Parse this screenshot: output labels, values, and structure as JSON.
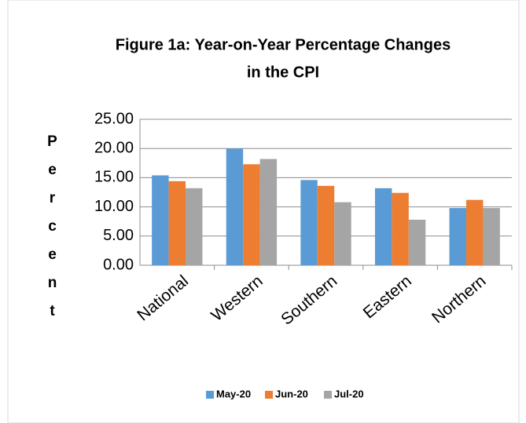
{
  "chart_data": {
    "type": "bar",
    "title": [
      "Figure 1a: Year-on-Year Percentage Changes",
      "in the CPI"
    ],
    "ylabel": "Percent",
    "categories": [
      "National",
      "Western",
      "Southern",
      "Eastern",
      "Northern"
    ],
    "series": [
      {
        "name": "May-20",
        "color": "#5b9bd5",
        "values": [
          15.4,
          20.0,
          14.6,
          13.2,
          9.8
        ]
      },
      {
        "name": "Jun-20",
        "color": "#ed7d31",
        "values": [
          14.4,
          17.3,
          13.6,
          12.4,
          11.2
        ]
      },
      {
        "name": "Jul-20",
        "color": "#a5a5a5",
        "values": [
          13.2,
          18.2,
          10.8,
          7.8,
          9.8
        ]
      }
    ],
    "ylim": [
      0,
      25
    ],
    "yticks": [
      {
        "value": 0,
        "label": "0.00"
      },
      {
        "value": 5,
        "label": "5.00"
      },
      {
        "value": 10,
        "label": "10.00"
      },
      {
        "value": 15,
        "label": "15.00"
      },
      {
        "value": 20,
        "label": "20.00"
      },
      {
        "value": 25,
        "label": "25.00"
      }
    ],
    "grid": true,
    "legend": "bottom"
  }
}
